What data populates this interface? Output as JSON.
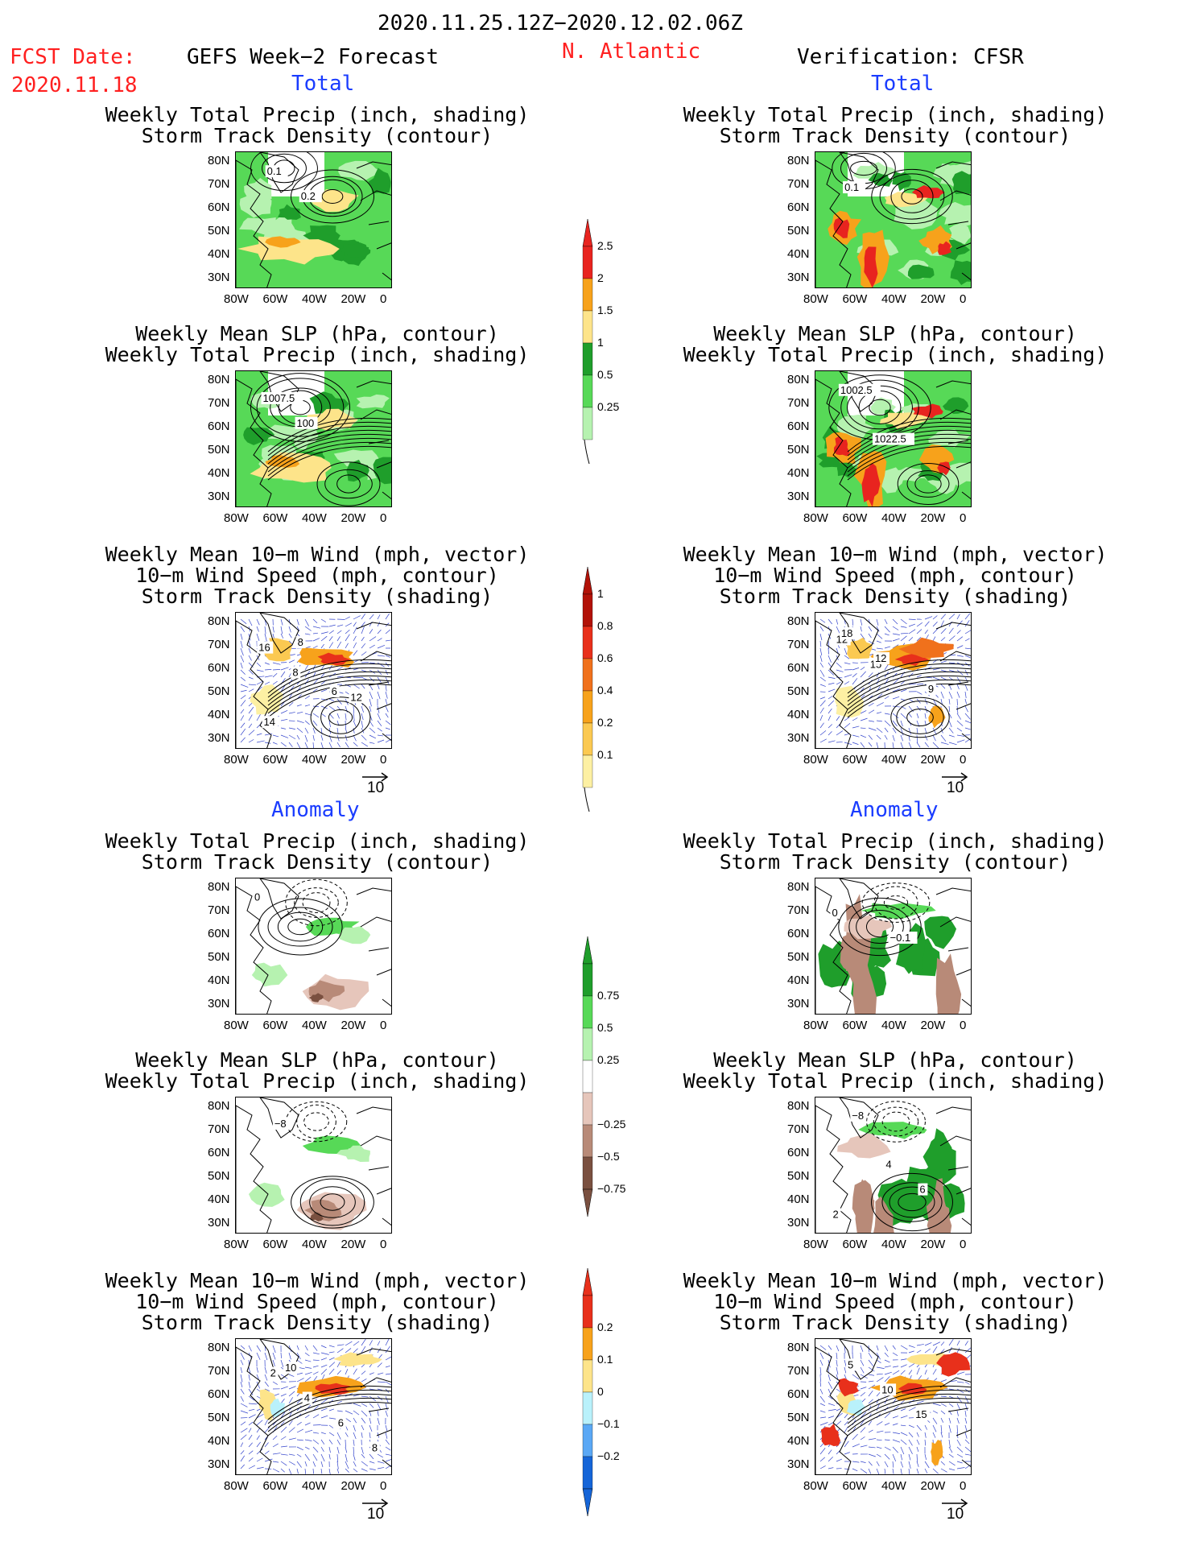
{
  "header": {
    "period": "2020.11.25.12Z−2020.12.02.06Z",
    "fcst_date_label": "FCST Date:",
    "fcst_date": "2020.11.18",
    "model": "GEFS Week−2 Forecast",
    "region": "N. Atlantic",
    "verification": "Verification: CFSR"
  },
  "sections": {
    "total": "Total",
    "anomaly": "Anomaly"
  },
  "titles": {
    "precip_track": [
      "Weekly Total Precip (inch, shading)",
      "Storm Track Density (contour)"
    ],
    "slp_precip": [
      "Weekly Mean SLP (hPa, contour)",
      "Weekly Total Precip (inch, shading)"
    ],
    "wind_track": [
      "Weekly Mean 10−m Wind (mph, vector)",
      "10−m Wind Speed (mph, contour)",
      "Storm Track Density (shading)"
    ]
  },
  "axes": {
    "lat": [
      "80N",
      "70N",
      "60N",
      "50N",
      "40N",
      "30N"
    ],
    "lon": [
      "80W",
      "60W",
      "40W",
      "20W",
      "0"
    ]
  },
  "vector_ref": "10",
  "panels": {
    "p1": {
      "labels": [
        "0.1",
        "0.2"
      ]
    },
    "p2": {
      "labels": [
        "0.1"
      ]
    },
    "p3": {
      "labels": [
        "1007.5",
        "100"
      ]
    },
    "p4": {
      "labels": [
        "1002.5",
        "1022.5"
      ]
    },
    "p5": {
      "labels": [
        "16",
        "8",
        "12",
        "14",
        "8",
        "6"
      ]
    },
    "p6": {
      "labels": [
        "12",
        "15",
        "9",
        "18",
        "12"
      ]
    },
    "p7": {
      "labels": [
        "0"
      ]
    },
    "p8": {
      "labels": [
        "0",
        "−0.1"
      ]
    },
    "p9": {
      "labels": [
        "−8"
      ]
    },
    "p10": {
      "labels": [
        "−8",
        "4",
        "6",
        "2"
      ]
    },
    "p11": {
      "labels": [
        "2",
        "4",
        "6",
        "8",
        "10"
      ]
    },
    "p12": {
      "labels": [
        "5",
        "10",
        "15"
      ]
    }
  },
  "colorbars": {
    "precip_total": {
      "labels": [
        "2.5",
        "2",
        "1.5",
        "1",
        "0.5",
        "0.25"
      ],
      "colors": [
        "#e8241f",
        "#f7a21b",
        "#fde48a",
        "#1f9e2b",
        "#57d957",
        "#b6f2b0"
      ]
    },
    "track_total": {
      "labels": [
        "1",
        "0.8",
        "0.6",
        "0.4",
        "0.2",
        "0.1"
      ],
      "colors": [
        "#b21208",
        "#e8301b",
        "#f0711c",
        "#f7a21b",
        "#fbc951",
        "#fdf0a3"
      ]
    },
    "precip_anom": {
      "labels": [
        "0.75",
        "0.5",
        "0.25",
        "−0.25",
        "−0.5",
        "−0.75"
      ],
      "colors": [
        "#1f9e2b",
        "#57d957",
        "#b6f2b0",
        "#ffffff",
        "#e6c6bb",
        "#b88a78",
        "#7a5040"
      ]
    },
    "track_anom": {
      "labels": [
        "0.2",
        "0.1",
        "0",
        "−0.1",
        "−0.2"
      ],
      "colors": [
        "#e8301b",
        "#f7a21b",
        "#fde48a",
        "#b9f1fb",
        "#5aa8f5",
        "#1565d8"
      ]
    }
  },
  "colors": {
    "title_red": "#ff2020",
    "section_blue": "#1a3cff",
    "vector_blue": "#3344cc"
  }
}
